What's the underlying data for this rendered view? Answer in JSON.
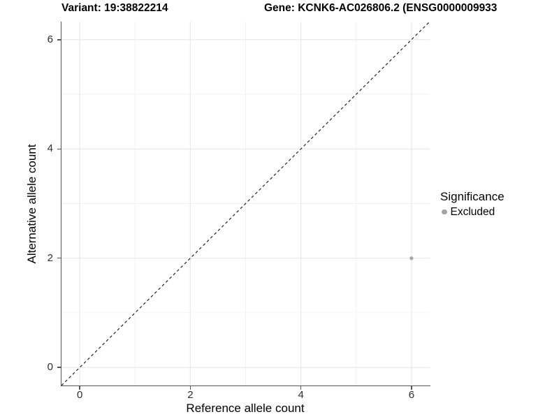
{
  "titles": {
    "variant": "Variant: 19:38822214",
    "gene": "Gene: KCNK6-AC026806.2 (ENSG0000009933"
  },
  "chart_data": {
    "type": "scatter",
    "title_left": "Variant: 19:38822214",
    "title_right": "Gene: KCNK6-AC026806.2 (ENSG0000009933",
    "xlabel": "Reference allele count",
    "ylabel": "Alternative allele count",
    "xlim": [
      -0.33,
      6.33
    ],
    "ylim": [
      -0.33,
      6.33
    ],
    "x_ticks": [
      0,
      2,
      4,
      6
    ],
    "y_ticks": [
      0,
      2,
      4,
      6
    ],
    "x_minor_gridlines": [
      1,
      3,
      5
    ],
    "y_minor_gridlines": [
      1,
      3,
      5
    ],
    "grid": true,
    "reference_line": {
      "kind": "identity y=x",
      "style": "dashed",
      "color": "#111111"
    },
    "series": [
      {
        "name": "Excluded",
        "color": "#a8a8a8",
        "points": [
          {
            "x": 6,
            "y": 2
          }
        ]
      }
    ],
    "legend": {
      "position": "right",
      "title": "Significance",
      "entries": [
        {
          "label": "Excluded",
          "color": "#a3a3a3"
        }
      ]
    }
  },
  "colors": {
    "grid_major": "#e7e7e7",
    "grid_minor": "#f2f2f2",
    "axis_line": "#555555",
    "tick_label": "#2e2e2e"
  }
}
